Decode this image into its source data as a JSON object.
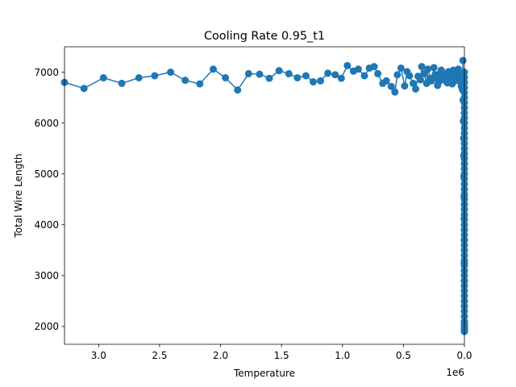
{
  "chart_data": {
    "type": "line",
    "title": "Cooling Rate 0.95_t1",
    "xlabel": "Temperature",
    "ylabel": "Total Wire Length",
    "x_offset_label": "1e6",
    "x_inverted": true,
    "xlim": [
      3.28,
      0
    ],
    "ylim": [
      1650,
      7500
    ],
    "grid": false,
    "xtick_values": [
      3.0,
      2.5,
      2.0,
      1.5,
      1.0,
      0.5,
      0.0
    ],
    "xtick_labels": [
      "3.0",
      "2.5",
      "2.0",
      "1.5",
      "1.0",
      "0.5",
      "0.0"
    ],
    "ytick_values": [
      2000,
      3000,
      4000,
      5000,
      6000,
      7000
    ],
    "ytick_labels": [
      "2000",
      "3000",
      "4000",
      "5000",
      "6000",
      "7000"
    ],
    "series": [
      {
        "color": "#1f77b4",
        "marker": "circle",
        "x": [
          3.28,
          3.12,
          2.96,
          2.81,
          2.67,
          2.54,
          2.41,
          2.29,
          2.17,
          2.06,
          1.96,
          1.86,
          1.77,
          1.68,
          1.6,
          1.52,
          1.44,
          1.37,
          1.3,
          1.24,
          1.18,
          1.12,
          1.06,
          1.01,
          0.96,
          0.91,
          0.87,
          0.82,
          0.78,
          0.74,
          0.71,
          0.67,
          0.64,
          0.6,
          0.57,
          0.55,
          0.52,
          0.49,
          0.47,
          0.45,
          0.42,
          0.4,
          0.38,
          0.36,
          0.35,
          0.33,
          0.31,
          0.3,
          0.28,
          0.27,
          0.25,
          0.24,
          0.23,
          0.22,
          0.21,
          0.2,
          0.19,
          0.18,
          0.17,
          0.16,
          0.15,
          0.14,
          0.13,
          0.12,
          0.11,
          0.1,
          0.09,
          0.08,
          0.07,
          0.06,
          0.05,
          0.045,
          0.04,
          0.035,
          0.03,
          0.025,
          0.02,
          0.015,
          0.012,
          0.01,
          0.008,
          0.006,
          0.005,
          0.004,
          0.003,
          0.002,
          0.0015,
          0.001,
          0.0005,
          0.0002
        ],
        "y": [
          6800,
          6680,
          6890,
          6780,
          6890,
          6930,
          7000,
          6840,
          6770,
          7060,
          6890,
          6650,
          6970,
          6960,
          6880,
          7030,
          6970,
          6890,
          6930,
          6810,
          6830,
          6980,
          6950,
          6880,
          7130,
          7020,
          7060,
          6930,
          7080,
          7110,
          6970,
          6780,
          6830,
          6720,
          6610,
          6950,
          7080,
          6730,
          7010,
          6930,
          6780,
          6670,
          6920,
          6850,
          7110,
          6970,
          6780,
          7060,
          6880,
          6830,
          7090,
          6950,
          6900,
          6740,
          6810,
          6980,
          7040,
          6920,
          6960,
          6840,
          6880,
          6790,
          7010,
          6920,
          6890,
          6770,
          7040,
          6830,
          6950,
          6890,
          7060,
          6990,
          6870,
          6810,
          6940,
          6720,
          6880,
          6650,
          7230,
          6450,
          6040,
          5700,
          5360,
          4950,
          4560,
          4120,
          3700,
          3250,
          2900,
          2500
        ]
      },
      {
        "color": "#1f77b4",
        "marker": "circle",
        "x": [
          0.0001,
          0.0001,
          0.0001,
          0.0001,
          0.0001,
          0.0001,
          0.0001,
          0.0001,
          0.0001,
          0.0001,
          0.0001,
          0.0001,
          0.0001,
          0.0001,
          0.0001,
          0.0001,
          0.0001,
          0.0001,
          0.0001,
          0.0001,
          0.0001,
          0.0001,
          0.0001,
          0.0001,
          0.0001,
          0.0001,
          0.0001,
          0.0001,
          0.0001,
          0.0001,
          0.0001,
          0.0001,
          0.0001,
          0.0001,
          0.0001,
          0.0001,
          0.0001,
          0.0001,
          0.0001,
          0.0001,
          0.0001,
          0.0001,
          0.0001,
          0.0001,
          0.0001,
          0.0001,
          0.0001,
          0.0001,
          0.0001,
          0.0001,
          0.0001,
          0.0001,
          0.0001,
          0.0001,
          0.0001,
          0.0001,
          0.0001,
          0.0001,
          0.0001,
          0.0001
        ],
        "y": [
          7000,
          6900,
          6800,
          6700,
          6600,
          6500,
          6400,
          6300,
          6200,
          6100,
          6000,
          5900,
          5800,
          5700,
          5600,
          5500,
          5400,
          5300,
          5200,
          5100,
          5000,
          4900,
          4800,
          4700,
          4600,
          4500,
          4400,
          4300,
          4200,
          4100,
          4000,
          3900,
          3800,
          3700,
          3600,
          3500,
          3400,
          3300,
          3200,
          3100,
          3000,
          2900,
          2800,
          2700,
          2600,
          2500,
          2400,
          2300,
          2200,
          2100,
          2050,
          2000,
          1980,
          1960,
          1940,
          1920,
          1910,
          1900,
          1950,
          2000
        ]
      }
    ]
  }
}
